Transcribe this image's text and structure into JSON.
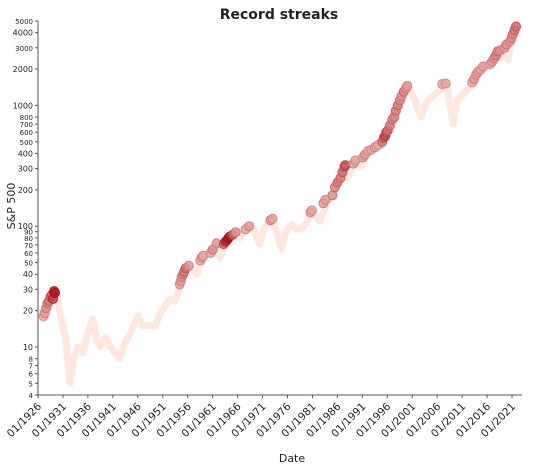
{
  "chart_data": {
    "type": "scatter",
    "title": "Record streaks",
    "xlabel": "Date",
    "ylabel": "S&P 500",
    "yscale": "log",
    "ylim": [
      4,
      5000
    ],
    "xlim": [
      "1926-01",
      "2023-01"
    ],
    "x_tick_labels": [
      "01/1926",
      "01/1931",
      "01/1936",
      "01/1941",
      "01/1946",
      "01/1951",
      "01/1956",
      "01/1961",
      "01/1966",
      "01/1971",
      "01/1976",
      "01/1981",
      "01/1986",
      "01/1991",
      "01/1996",
      "01/2001",
      "01/2006",
      "01/2011",
      "01/2016",
      "01/2021"
    ],
    "x_tick_years": [
      1926,
      1931,
      1936,
      1941,
      1946,
      1951,
      1956,
      1961,
      1966,
      1971,
      1976,
      1981,
      1986,
      1991,
      1996,
      2001,
      2006,
      2011,
      2016,
      2021
    ],
    "y_ticks": [
      {
        "v": 4,
        "label": "4"
      },
      {
        "v": 5,
        "label": "5"
      },
      {
        "v": 6,
        "label": "6"
      },
      {
        "v": 7,
        "label": "7"
      },
      {
        "v": 8,
        "label": "8"
      },
      {
        "v": 10,
        "label": "10"
      },
      {
        "v": 20,
        "label": "20"
      },
      {
        "v": 30,
        "label": "30"
      },
      {
        "v": 40,
        "label": "40"
      },
      {
        "v": 50,
        "label": "50"
      },
      {
        "v": 60,
        "label": "60"
      },
      {
        "v": 70,
        "label": "70"
      },
      {
        "v": 80,
        "label": "80"
      },
      {
        "v": 90,
        "label": "90"
      },
      {
        "v": 100,
        "label": "100"
      },
      {
        "v": 200,
        "label": "200"
      },
      {
        "v": 300,
        "label": "300"
      },
      {
        "v": 400,
        "label": "400"
      },
      {
        "v": 500,
        "label": "500"
      },
      {
        "v": 600,
        "label": "600"
      },
      {
        "v": 700,
        "label": "700"
      },
      {
        "v": 800,
        "label": "800"
      },
      {
        "v": 1000,
        "label": "1000"
      },
      {
        "v": 2000,
        "label": "2000"
      },
      {
        "v": 3000,
        "label": "3000"
      },
      {
        "v": 4000,
        "label": "4000"
      },
      {
        "v": 5000,
        "label": "5000"
      }
    ],
    "y_small_labels": [
      4,
      5,
      6,
      7,
      8,
      50,
      60,
      70,
      80,
      90,
      500,
      600,
      700,
      800,
      3000,
      5000
    ],
    "grid": false,
    "legend": "none",
    "color_low": "#fde6dc",
    "color_high": "#a50f15",
    "background_series": [
      [
        1927.0,
        17
      ],
      [
        1928.0,
        20
      ],
      [
        1929.6,
        30
      ],
      [
        1930.0,
        23
      ],
      [
        1930.8,
        16
      ],
      [
        1931.5,
        12
      ],
      [
        1932.4,
        5
      ],
      [
        1933.2,
        8
      ],
      [
        1934.0,
        10
      ],
      [
        1935.0,
        9
      ],
      [
        1936.0,
        13
      ],
      [
        1937.0,
        17
      ],
      [
        1937.9,
        11
      ],
      [
        1938.5,
        10
      ],
      [
        1939.5,
        12
      ],
      [
        1940.5,
        10
      ],
      [
        1942.3,
        8
      ],
      [
        1943.5,
        11
      ],
      [
        1944.5,
        13
      ],
      [
        1946.0,
        18
      ],
      [
        1947.0,
        15
      ],
      [
        1948.5,
        15
      ],
      [
        1949.5,
        15
      ],
      [
        1950.5,
        19
      ],
      [
        1951.5,
        22
      ],
      [
        1952.5,
        25
      ],
      [
        1953.5,
        24
      ],
      [
        1954.5,
        32
      ],
      [
        1955.5,
        44
      ],
      [
        1956.5,
        46
      ],
      [
        1957.9,
        40
      ],
      [
        1958.8,
        50
      ],
      [
        1959.8,
        58
      ],
      [
        1961.0,
        63
      ],
      [
        1961.9,
        72
      ],
      [
        1962.5,
        55
      ],
      [
        1963.5,
        70
      ],
      [
        1965.0,
        85
      ],
      [
        1966.5,
        80
      ],
      [
        1967.5,
        93
      ],
      [
        1969.0,
        100
      ],
      [
        1970.4,
        71
      ],
      [
        1971.5,
        100
      ],
      [
        1973.0,
        115
      ],
      [
        1974.8,
        65
      ],
      [
        1975.5,
        85
      ],
      [
        1976.8,
        105
      ],
      [
        1977.8,
        95
      ],
      [
        1978.8,
        95
      ],
      [
        1980.0,
        110
      ],
      [
        1981.0,
        130
      ],
      [
        1982.5,
        110
      ],
      [
        1984.0,
        160
      ],
      [
        1985.0,
        175
      ],
      [
        1986.0,
        230
      ],
      [
        1987.7,
        330
      ],
      [
        1988.0,
        250
      ],
      [
        1989.5,
        340
      ],
      [
        1990.8,
        310
      ],
      [
        1992.0,
        410
      ],
      [
        1993.5,
        460
      ],
      [
        1994.5,
        460
      ],
      [
        1996.0,
        640
      ],
      [
        1997.5,
        900
      ],
      [
        1998.8,
        1150
      ],
      [
        2000.2,
        1480
      ],
      [
        2001.5,
        1100
      ],
      [
        2002.8,
        800
      ],
      [
        2003.5,
        1000
      ],
      [
        2004.5,
        1130
      ],
      [
        2006.0,
        1280
      ],
      [
        2007.8,
        1500
      ],
      [
        2008.8,
        900
      ],
      [
        2009.2,
        700
      ],
      [
        2010.0,
        1100
      ],
      [
        2011.5,
        1280
      ],
      [
        2012.5,
        1400
      ],
      [
        2013.5,
        1700
      ],
      [
        2014.5,
        1950
      ],
      [
        2015.5,
        2050
      ],
      [
        2016.5,
        2150
      ],
      [
        2017.5,
        2500
      ],
      [
        2018.9,
        2500
      ],
      [
        2019.5,
        3000
      ],
      [
        2020.2,
        2400
      ],
      [
        2020.8,
        3500
      ],
      [
        2021.5,
        4300
      ],
      [
        2022.0,
        4700
      ]
    ],
    "record_points": [
      [
        1927.1,
        18,
        0.25
      ],
      [
        1927.3,
        19,
        0.35
      ],
      [
        1927.6,
        21,
        0.4
      ],
      [
        1927.9,
        23,
        0.45
      ],
      [
        1928.2,
        24,
        0.5
      ],
      [
        1928.5,
        26,
        0.55
      ],
      [
        1928.8,
        27,
        0.6
      ],
      [
        1929.0,
        25,
        0.75
      ],
      [
        1929.2,
        29,
        0.85
      ],
      [
        1929.4,
        28,
        0.95
      ],
      [
        1954.4,
        33,
        0.3
      ],
      [
        1954.6,
        35,
        0.35
      ],
      [
        1954.8,
        38,
        0.4
      ],
      [
        1955.1,
        40,
        0.45
      ],
      [
        1955.3,
        42,
        0.5
      ],
      [
        1955.6,
        45,
        0.55
      ],
      [
        1956.2,
        47,
        0.35
      ],
      [
        1958.5,
        52,
        0.3
      ],
      [
        1958.8,
        55,
        0.35
      ],
      [
        1959.1,
        57,
        0.3
      ],
      [
        1960.6,
        60,
        0.3
      ],
      [
        1961.0,
        64,
        0.4
      ],
      [
        1961.8,
        72,
        0.35
      ],
      [
        1963.2,
        71,
        0.55
      ],
      [
        1963.5,
        74,
        0.7
      ],
      [
        1963.8,
        76,
        0.85
      ],
      [
        1964.1,
        79,
        0.95
      ],
      [
        1964.4,
        82,
        0.9
      ],
      [
        1965.0,
        85,
        0.6
      ],
      [
        1965.6,
        89,
        0.4
      ],
      [
        1967.6,
        94,
        0.3
      ],
      [
        1968.3,
        100,
        0.35
      ],
      [
        1972.6,
        112,
        0.35
      ],
      [
        1973.0,
        115,
        0.3
      ],
      [
        1980.6,
        130,
        0.3
      ],
      [
        1980.9,
        135,
        0.3
      ],
      [
        1983.2,
        155,
        0.35
      ],
      [
        1983.6,
        165,
        0.35
      ],
      [
        1985.0,
        180,
        0.4
      ],
      [
        1985.5,
        210,
        0.45
      ],
      [
        1986.0,
        230,
        0.5
      ],
      [
        1986.6,
        250,
        0.5
      ],
      [
        1987.0,
        280,
        0.55
      ],
      [
        1987.4,
        310,
        0.6
      ],
      [
        1987.6,
        320,
        0.65
      ],
      [
        1989.2,
        330,
        0.35
      ],
      [
        1989.6,
        350,
        0.3
      ],
      [
        1991.1,
        370,
        0.35
      ],
      [
        1991.5,
        390,
        0.35
      ],
      [
        1992.2,
        420,
        0.3
      ],
      [
        1992.8,
        430,
        0.3
      ],
      [
        1993.5,
        450,
        0.35
      ],
      [
        1994.2,
        470,
        0.3
      ],
      [
        1995.0,
        500,
        0.5
      ],
      [
        1995.3,
        540,
        0.6
      ],
      [
        1995.6,
        560,
        0.7
      ],
      [
        1995.8,
        600,
        0.65
      ],
      [
        1996.1,
        620,
        0.55
      ],
      [
        1996.5,
        680,
        0.5
      ],
      [
        1997.0,
        760,
        0.45
      ],
      [
        1997.4,
        800,
        0.45
      ],
      [
        1997.7,
        900,
        0.5
      ],
      [
        1998.1,
        1000,
        0.5
      ],
      [
        1998.5,
        1100,
        0.45
      ],
      [
        1998.9,
        1200,
        0.4
      ],
      [
        1999.3,
        1300,
        0.45
      ],
      [
        1999.7,
        1380,
        0.4
      ],
      [
        2000.0,
        1450,
        0.35
      ],
      [
        2007.0,
        1500,
        0.3
      ],
      [
        2007.7,
        1520,
        0.3
      ],
      [
        2013.0,
        1550,
        0.3
      ],
      [
        2013.4,
        1650,
        0.35
      ],
      [
        2013.8,
        1800,
        0.35
      ],
      [
        2014.2,
        1900,
        0.35
      ],
      [
        2014.7,
        1980,
        0.3
      ],
      [
        2015.2,
        2100,
        0.35
      ],
      [
        2016.6,
        2200,
        0.3
      ],
      [
        2017.0,
        2300,
        0.35
      ],
      [
        2017.4,
        2450,
        0.4
      ],
      [
        2017.8,
        2600,
        0.45
      ],
      [
        2018.1,
        2800,
        0.45
      ],
      [
        2018.6,
        2850,
        0.4
      ],
      [
        2019.5,
        3000,
        0.35
      ],
      [
        2019.9,
        3200,
        0.4
      ],
      [
        2020.6,
        3400,
        0.35
      ],
      [
        2020.9,
        3600,
        0.4
      ],
      [
        2021.2,
        3900,
        0.45
      ],
      [
        2021.5,
        4200,
        0.5
      ],
      [
        2021.8,
        4500,
        0.55
      ]
    ]
  }
}
